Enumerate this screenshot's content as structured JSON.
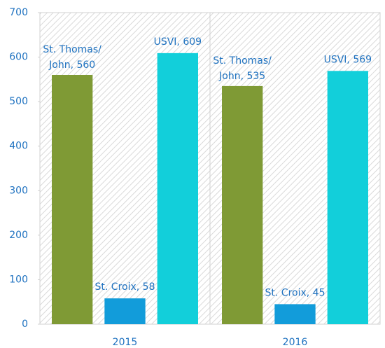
{
  "chart_data": {
    "type": "bar",
    "categories": [
      "2015",
      "2016"
    ],
    "series": [
      {
        "color": "#7f9a35",
        "values": [
          560,
          535
        ],
        "value_labels": [
          "St. Thomas/John, 560",
          "St. Thomas/John, 535"
        ]
      },
      {
        "color": "#129cda",
        "values": [
          58,
          45
        ],
        "value_labels": [
          "St. Croix, 58",
          "St. Croix, 45"
        ]
      },
      {
        "color": "#12cfda",
        "values": [
          609,
          569
        ],
        "value_labels": [
          "USVI, 609",
          "USVI, 569"
        ]
      }
    ],
    "ylim": [
      0,
      700
    ],
    "yticks": [
      0,
      100,
      200,
      300,
      400,
      500,
      600,
      700
    ],
    "grid": false
  }
}
